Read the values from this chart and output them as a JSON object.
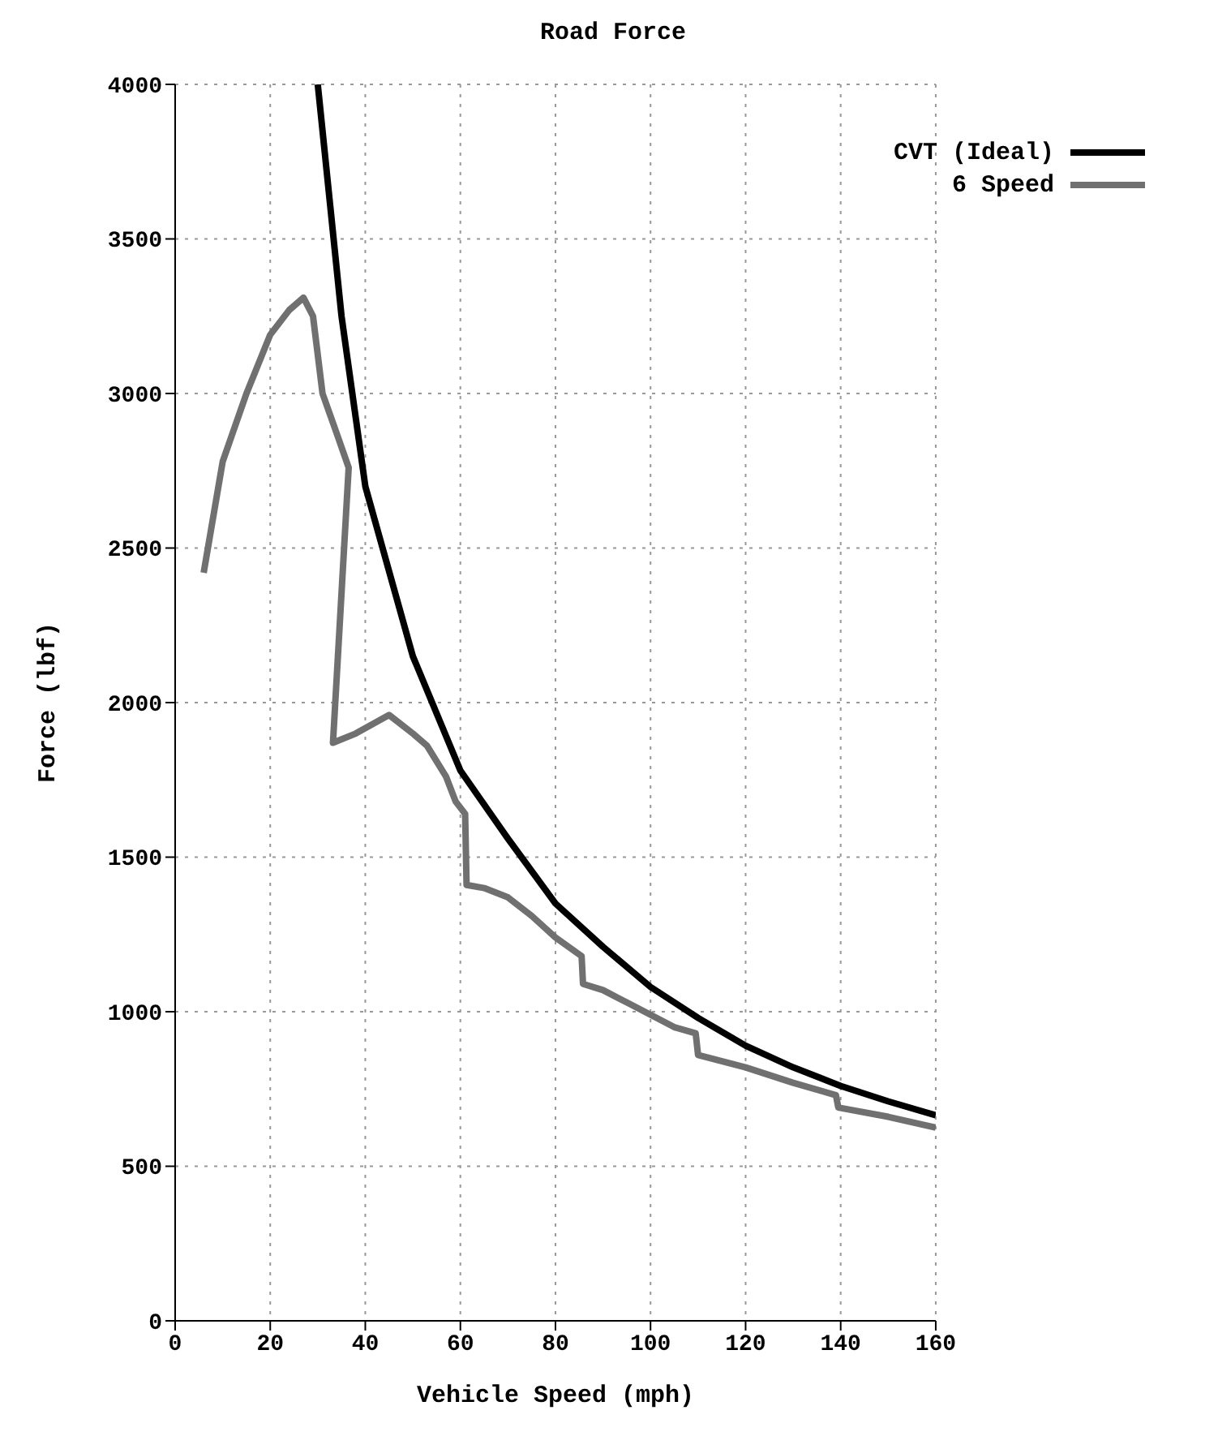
{
  "chart_data": {
    "type": "line",
    "title": "Road Force",
    "xlabel": "Vehicle Speed (mph)",
    "ylabel": "Force (lbf)",
    "xlim": [
      0,
      160
    ],
    "xticks": [
      0,
      20,
      40,
      60,
      80,
      100,
      120,
      140,
      160
    ],
    "ylim": [
      0,
      4000
    ],
    "yticks": [
      0,
      500,
      1000,
      1500,
      2000,
      2500,
      3000,
      3500,
      4000
    ],
    "grid": true,
    "legend": "top right",
    "marker": "none",
    "line_style": "solid",
    "series": [
      {
        "name": "CVT (Ideal)",
        "color": "#000000",
        "x": [
          30,
          35,
          40,
          50,
          60,
          70,
          80,
          90,
          100,
          110,
          120,
          130,
          140,
          150,
          160
        ],
        "values": [
          4000,
          3250,
          2700,
          2150,
          1780,
          1560,
          1350,
          1210,
          1080,
          980,
          890,
          820,
          760,
          710,
          665
        ]
      },
      {
        "name": "6 Speed",
        "color": "#707070",
        "x": [
          6,
          10,
          15,
          20,
          24,
          27,
          29,
          31,
          34,
          36.5,
          33.2,
          38,
          45,
          50,
          53,
          57,
          59,
          61,
          61.3,
          65,
          70,
          75,
          80,
          85.5,
          85.8,
          90,
          95,
          100,
          105,
          109.5,
          110,
          120,
          130,
          139,
          139.5,
          150,
          160
        ],
        "values": [
          2420,
          2780,
          3000,
          3190,
          3270,
          3310,
          3250,
          3000,
          2870,
          2760,
          1870,
          1900,
          1960,
          1900,
          1860,
          1760,
          1680,
          1640,
          1410,
          1400,
          1370,
          1310,
          1240,
          1180,
          1090,
          1070,
          1030,
          990,
          950,
          930,
          860,
          820,
          770,
          730,
          690,
          660,
          625
        ]
      }
    ]
  }
}
